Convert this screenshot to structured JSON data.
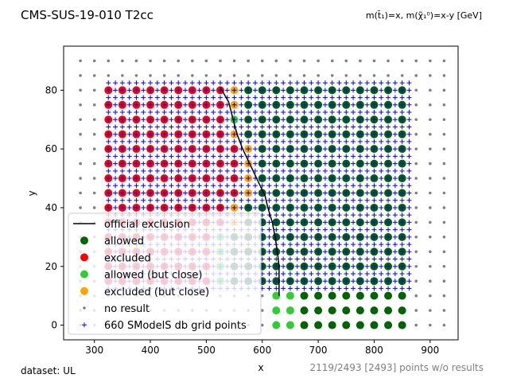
{
  "title": "CMS-SUS-19-010 T2cc",
  "subtitle": "m(t̃₁)=x, m(χ̃₁⁰)=x-y [GeV]",
  "dataset_label": "dataset: UL",
  "points_info": "2119/2493 [2493] points w/o results",
  "chart_data": {
    "type": "scatter",
    "title": "CMS-SUS-19-010 T2cc",
    "xlabel": "x",
    "ylabel": "y",
    "xlim": [
      245,
      950
    ],
    "ylim": [
      -5,
      95
    ],
    "xticks": [
      "300",
      "400",
      "500",
      "600",
      "700",
      "800",
      "900"
    ],
    "yticks": [
      "0",
      "20",
      "40",
      "60",
      "80"
    ],
    "legend_position": "lower-left",
    "legend": [
      {
        "key": "official",
        "label": "official exclusion",
        "color": "#000000"
      },
      {
        "key": "allowed",
        "label": "allowed",
        "color": "#006400"
      },
      {
        "key": "excluded",
        "label": "excluded",
        "color": "#ff0000"
      },
      {
        "key": "allowed_close",
        "label": "allowed (but close)",
        "color": "#32cd32"
      },
      {
        "key": "excluded_close",
        "label": "excluded (but close)",
        "color": "#ffa500"
      },
      {
        "key": "no_result",
        "label": "no result",
        "color": "#808080"
      },
      {
        "key": "grid",
        "label": "660 SModelS db grid points",
        "color": "#0000ff"
      }
    ],
    "official_exclusion": {
      "x": [
        525,
        540,
        548,
        555,
        565,
        575,
        585,
        595,
        605,
        610,
        618,
        623,
        627,
        630,
        630
      ],
      "y": [
        81,
        76,
        70,
        65,
        60,
        56,
        52,
        48,
        44,
        40,
        35,
        30,
        25,
        20,
        10
      ]
    },
    "bands": {
      "excluded_xmax": [
        [
          17,
          505
        ],
        [
          25,
          520
        ],
        [
          35,
          545
        ],
        [
          45,
          560
        ],
        [
          55,
          570
        ],
        [
          65,
          530
        ],
        [
          75,
          530
        ],
        [
          82,
          520
        ]
      ],
      "close_rules": [
        {
          "y": 0,
          "allowed_close_x": [
            625,
            650
          ]
        },
        {
          "y": 5,
          "allowed_close_x": [
            625,
            650
          ]
        },
        {
          "y": 10,
          "allowed_close_x": [
            625,
            650
          ]
        }
      ]
    },
    "grid_rows": {
      "dot_x_range": [
        275,
        925,
        25
      ],
      "dot_y_range": [
        0,
        90,
        5
      ],
      "circle_x_range": [
        325,
        850,
        25
      ],
      "circle_y_range_low": [
        0,
        10,
        5
      ],
      "circle_y_range_high": [
        15,
        80,
        5
      ],
      "plus_x_range": [
        325,
        863,
        12.5
      ],
      "plus_y_range": [
        12.5,
        82.5,
        2.5
      ]
    }
  }
}
